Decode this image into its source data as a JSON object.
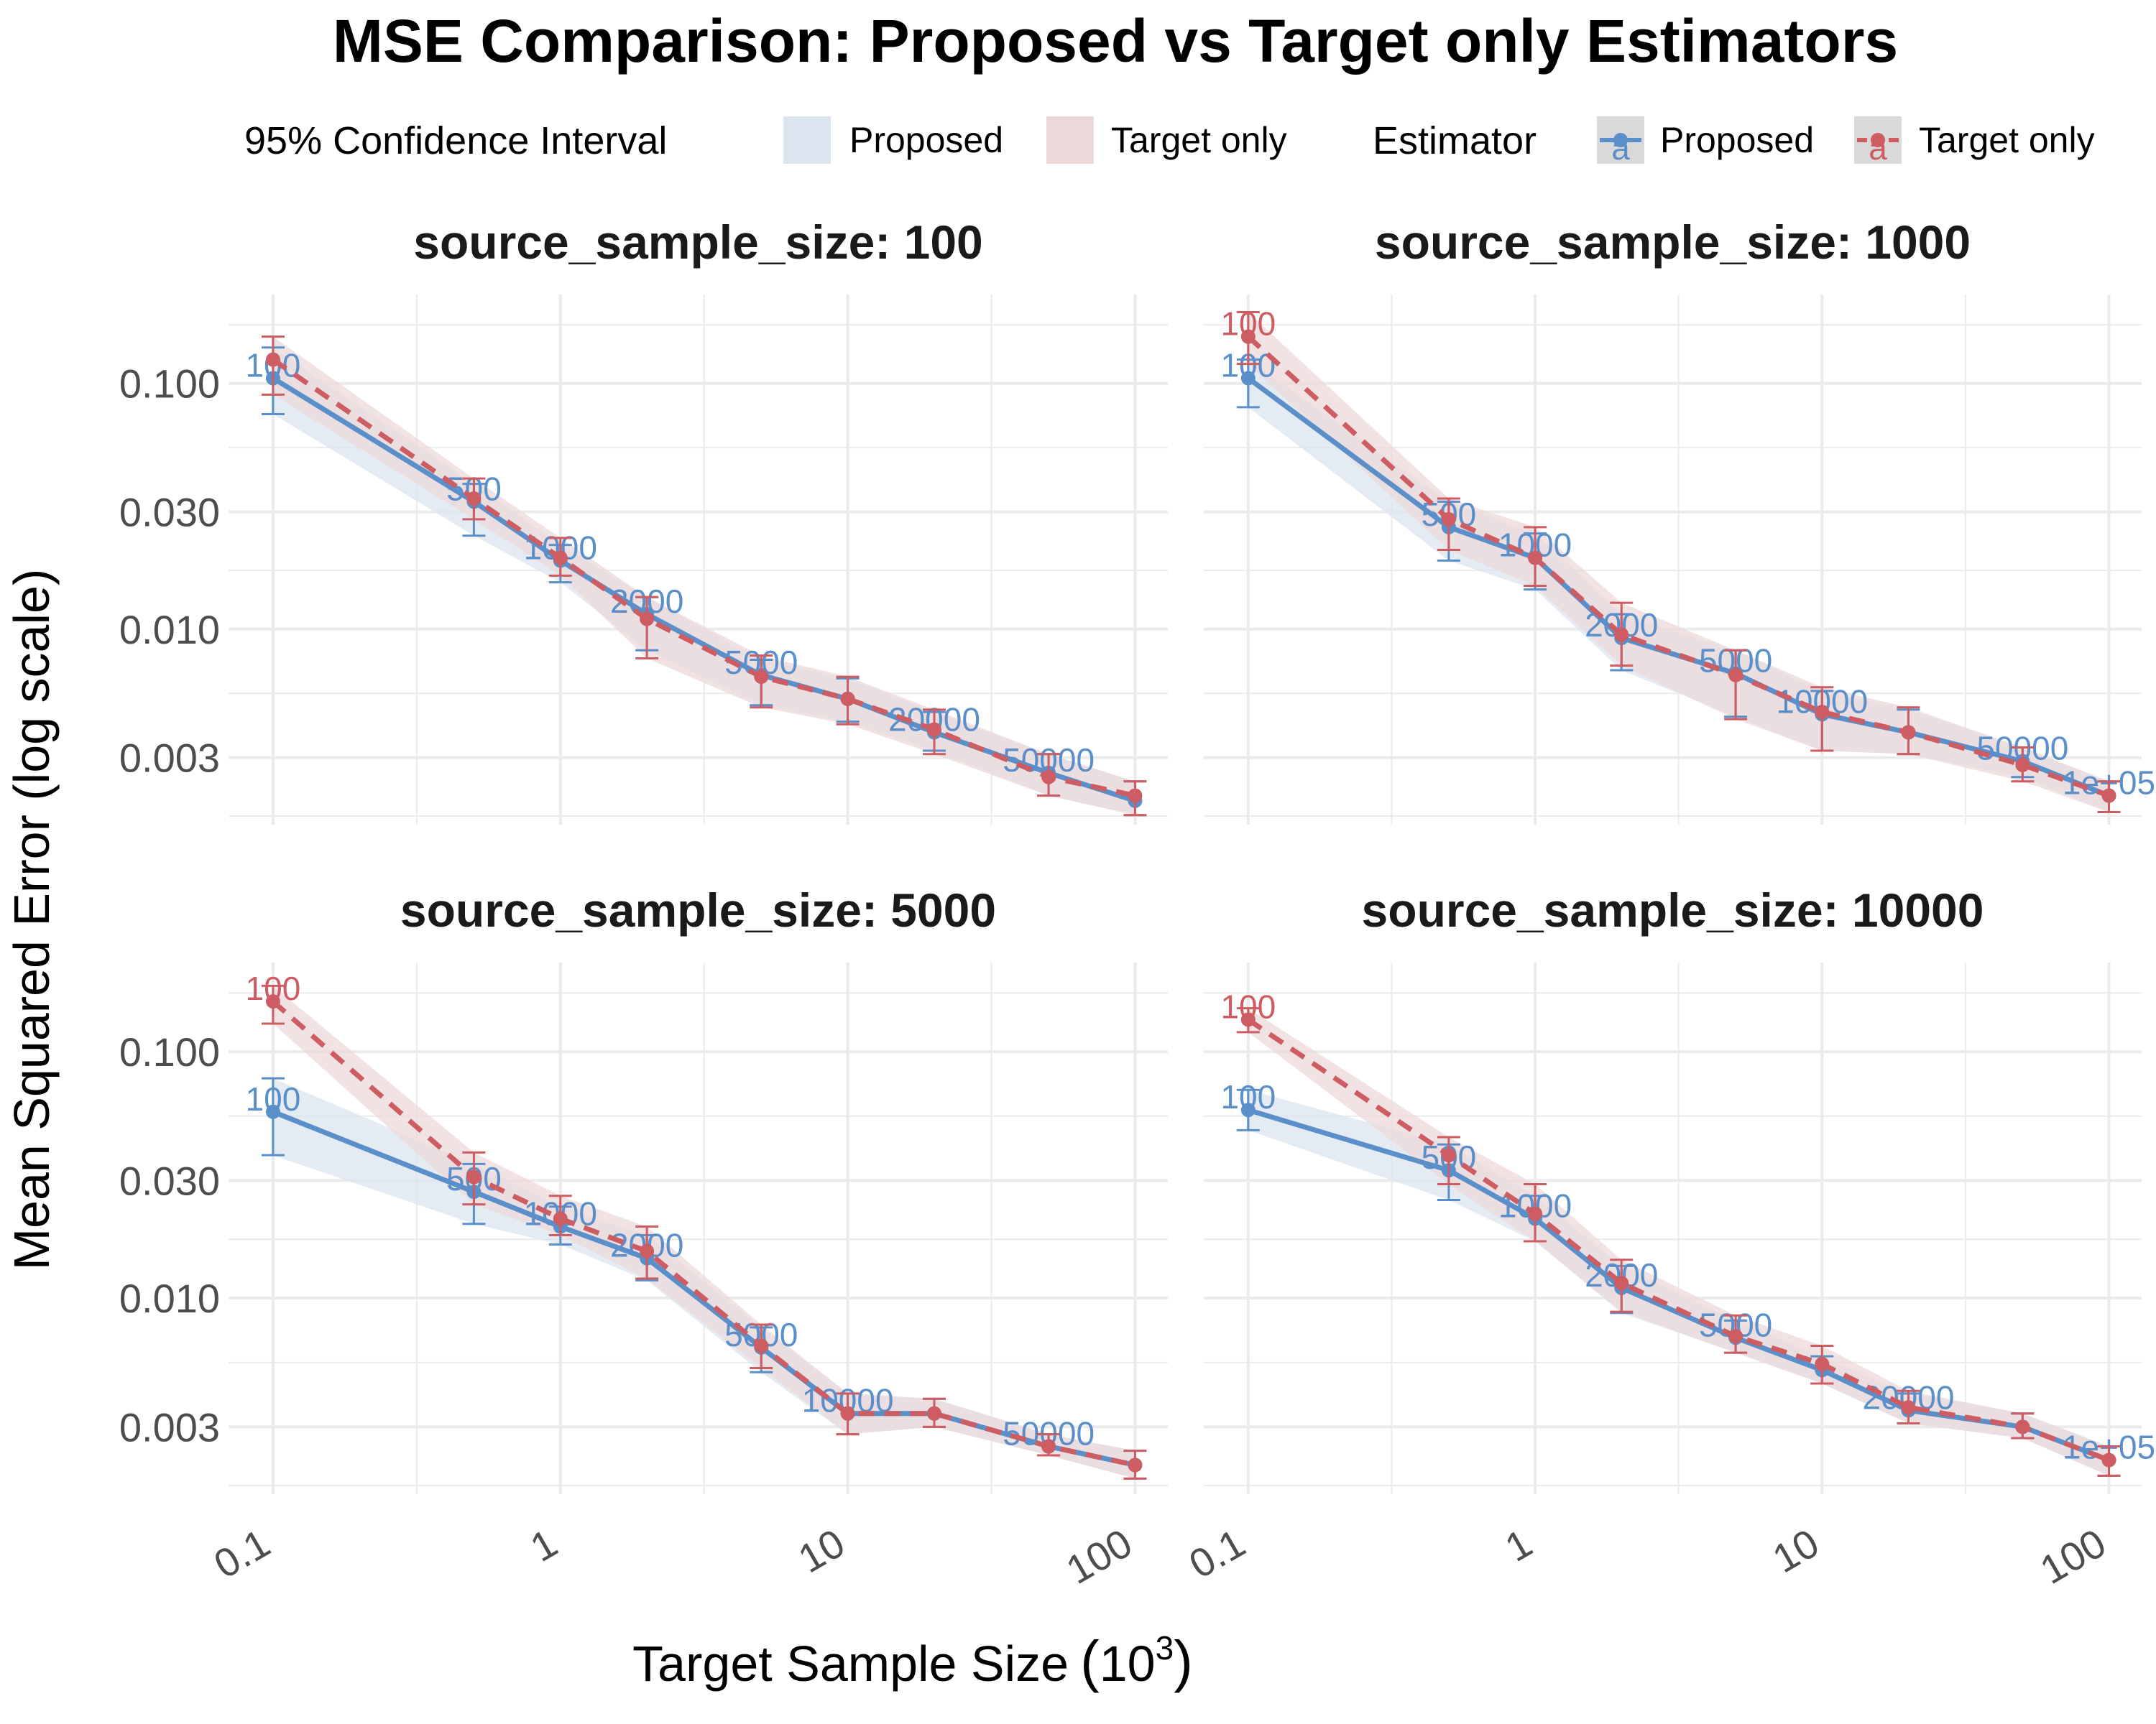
{
  "chart_data": {
    "type": "line",
    "title": "MSE Comparison: Proposed vs Target only Estimators",
    "xlabel": "Target Sample Size (10^3)",
    "xlabel_main": "Target Sample Size",
    "xlabel_unit_base": "10",
    "xlabel_unit_exp": "3",
    "ylabel": "Mean Squared Error (log scale)",
    "x_scale": "log",
    "y_scale": "log",
    "xlim": [
      0.07,
      130
    ],
    "ylim": [
      0.0016,
      0.23
    ],
    "x_ticks": [
      0.1,
      1,
      10,
      100
    ],
    "x_tick_labels": [
      "0.1",
      "1",
      "10",
      "100"
    ],
    "y_ticks": [
      0.003,
      0.01,
      0.03,
      0.1
    ],
    "y_tick_labels": [
      "0.003",
      "0.010",
      "0.030",
      "0.100"
    ],
    "grid": true,
    "legend_position": "top",
    "legend": {
      "ci_title": "95% Confidence Interval",
      "estimator_title": "Estimator",
      "entries": [
        "Proposed",
        "Target only"
      ],
      "key_glyph": "a"
    },
    "colors": {
      "Proposed": "#5b8fc9",
      "Target only": "#cd5c63",
      "Proposed_ci": "#dbe4ef",
      "Target only_ci": "#ecdada",
      "grid": "#ebebeb",
      "key_bg": "#d9d9d9"
    },
    "x": [
      0.1,
      0.5,
      1,
      2,
      5,
      10,
      20,
      50,
      100
    ],
    "panels": [
      {
        "facet_label": "source_sample_size: 100",
        "series": [
          {
            "name": "Proposed",
            "values": [
              0.105,
              0.033,
              0.019,
              0.0115,
              0.0065,
              0.0052,
              0.0038,
              0.0026,
              0.002
            ],
            "ci_low": [
              0.075,
              0.024,
              0.0155,
              0.0082,
              0.0049,
              0.0042,
              0.0032,
              0.0021,
              0.00175
            ],
            "ci_high": [
              0.14,
              0.039,
              0.022,
              0.0135,
              0.0075,
              0.0063,
              0.0046,
              0.0031,
              0.0024
            ],
            "labels": [
              "100",
              "500",
              "1000",
              "2000",
              "5000",
              "",
              "20000",
              "50000",
              ""
            ]
          },
          {
            "name": "Target only",
            "values": [
              0.125,
              0.034,
              0.0195,
              0.011,
              0.0064,
              0.0052,
              0.0039,
              0.0025,
              0.0021
            ],
            "ci_low": [
              0.09,
              0.028,
              0.0165,
              0.0076,
              0.0048,
              0.0041,
              0.0031,
              0.0021,
              0.00175
            ],
            "ci_high": [
              0.155,
              0.041,
              0.0235,
              0.0135,
              0.0078,
              0.0064,
              0.0047,
              0.0031,
              0.0024
            ],
            "labels": [
              "",
              "",
              "",
              "",
              "",
              "",
              "",
              "",
              ""
            ]
          }
        ]
      },
      {
        "facet_label": "source_sample_size: 1000",
        "series": [
          {
            "name": "Proposed",
            "values": [
              0.105,
              0.026,
              0.0195,
              0.0092,
              0.0066,
              0.0045,
              0.0038,
              0.0029,
              0.0021
            ],
            "ci_low": [
              0.08,
              0.019,
              0.0145,
              0.0068,
              0.0044,
              0.0032,
              0.0031,
              0.0025,
              0.0018
            ],
            "ci_high": [
              0.125,
              0.033,
              0.0245,
              0.0115,
              0.0082,
              0.0056,
              0.0047,
              0.0033,
              0.0024
            ],
            "labels": [
              "100",
              "500",
              "1000",
              "2000",
              "5000",
              "10000",
              "",
              "50000",
              "1e+05"
            ]
          },
          {
            "name": "Target only",
            "values": [
              0.155,
              0.028,
              0.0195,
              0.0095,
              0.0065,
              0.0046,
              0.0038,
              0.0028,
              0.0021
            ],
            "ci_low": [
              0.12,
              0.021,
              0.015,
              0.0071,
              0.0043,
              0.0032,
              0.0031,
              0.0024,
              0.0018
            ],
            "ci_high": [
              0.195,
              0.034,
              0.026,
              0.0128,
              0.0082,
              0.0058,
              0.0048,
              0.0033,
              0.0024
            ],
            "labels": [
              "100",
              "",
              "",
              "",
              "",
              "",
              "",
              "",
              ""
            ]
          }
        ]
      },
      {
        "facet_label": "source_sample_size: 5000",
        "series": [
          {
            "name": "Proposed",
            "values": [
              0.057,
              0.027,
              0.0195,
              0.0145,
              0.0063,
              0.0034,
              0.0034,
              0.0025,
              0.0021
            ],
            "ci_low": [
              0.038,
              0.02,
              0.0165,
              0.0118,
              0.005,
              0.0028,
              0.003,
              0.0023,
              0.00185
            ],
            "ci_high": [
              0.078,
              0.035,
              0.0235,
              0.018,
              0.0076,
              0.0041,
              0.0039,
              0.0028,
              0.0024
            ],
            "labels": [
              "100",
              "500",
              "1000",
              "2000",
              "5000",
              "10000",
              "",
              "50000",
              ""
            ]
          },
          {
            "name": "Target only",
            "values": [
              0.16,
              0.031,
              0.021,
              0.0155,
              0.0064,
              0.0034,
              0.0034,
              0.0025,
              0.0021
            ],
            "ci_low": [
              0.13,
              0.024,
              0.018,
              0.012,
              0.0052,
              0.0028,
              0.003,
              0.0023,
              0.00185
            ],
            "ci_high": [
              0.185,
              0.039,
              0.026,
              0.0195,
              0.0078,
              0.0041,
              0.0039,
              0.0028,
              0.0024
            ],
            "labels": [
              "100",
              "",
              "",
              "",
              "",
              "",
              "",
              "",
              ""
            ]
          }
        ]
      },
      {
        "facet_label": "source_sample_size: 10000",
        "series": [
          {
            "name": "Proposed",
            "values": [
              0.058,
              0.033,
              0.021,
              0.011,
              0.0069,
              0.0051,
              0.0035,
              0.003,
              0.0022
            ],
            "ci_low": [
              0.048,
              0.025,
              0.017,
              0.0087,
              0.006,
              0.0045,
              0.0031,
              0.0027,
              0.0019
            ],
            "ci_high": [
              0.07,
              0.042,
              0.026,
              0.0135,
              0.0081,
              0.0058,
              0.0041,
              0.0034,
              0.0025
            ],
            "labels": [
              "100",
              "500",
              "1000",
              "2000",
              "5000",
              "",
              "20000",
              "",
              "1e+05"
            ]
          },
          {
            "name": "Target only",
            "values": [
              0.135,
              0.038,
              0.022,
              0.0115,
              0.007,
              0.0054,
              0.0036,
              0.003,
              0.0022
            ],
            "ci_low": [
              0.12,
              0.029,
              0.017,
              0.0088,
              0.006,
              0.0045,
              0.0031,
              0.0027,
              0.0019
            ],
            "ci_high": [
              0.15,
              0.045,
              0.029,
              0.0143,
              0.0085,
              0.0064,
              0.0042,
              0.0034,
              0.0025
            ],
            "labels": [
              "100",
              "",
              "",
              "",
              "",
              "",
              "",
              "",
              ""
            ]
          }
        ]
      }
    ]
  }
}
